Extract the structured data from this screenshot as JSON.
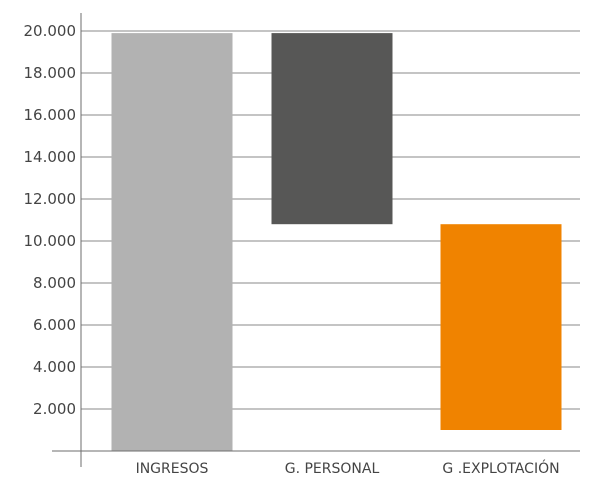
{
  "chart_data": {
    "type": "bar",
    "subtype": "waterfall",
    "categories": [
      "INGRESOS",
      "G. PERSONAL",
      "G .EXPLOTACIÓN"
    ],
    "series": [
      {
        "values": [
          {
            "start": 0,
            "end": 19900
          },
          {
            "start": 10800,
            "end": 19900
          },
          {
            "start": 1000,
            "end": 10800
          }
        ]
      }
    ],
    "colors": [
      "#b2b2b2",
      "#575756",
      "#f08300"
    ],
    "ylim": [
      0,
      20000
    ],
    "yticks": [
      2000,
      4000,
      6000,
      8000,
      10000,
      12000,
      14000,
      16000,
      18000,
      20000
    ],
    "ytick_labels": [
      "2.000",
      "4.000",
      "6.000",
      "8.000",
      "10.000",
      "12.000",
      "14.000",
      "16.000",
      "18.000",
      "20.000"
    ],
    "grid": true,
    "title": "",
    "xlabel": "",
    "ylabel": "",
    "legend": "none"
  }
}
